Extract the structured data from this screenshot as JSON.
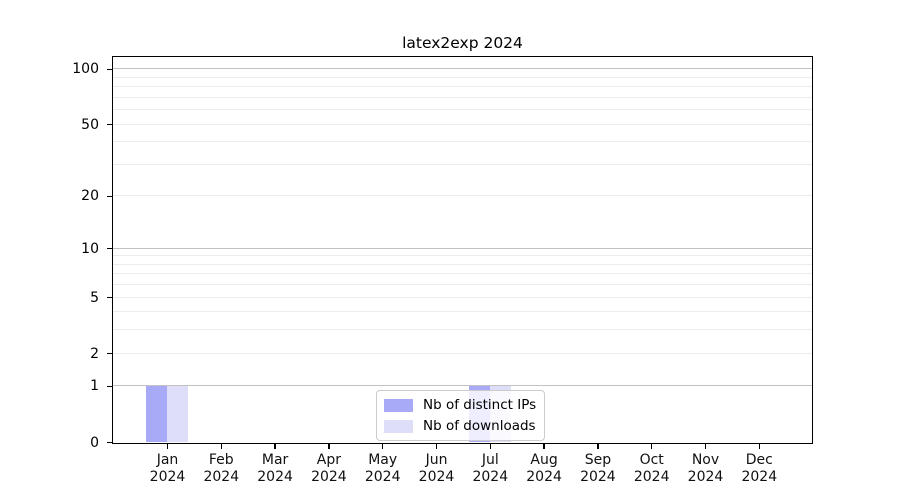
{
  "chart_data": {
    "type": "bar",
    "title": "latex2exp 2024",
    "categories": [
      "Jan",
      "Feb",
      "Mar",
      "Apr",
      "May",
      "Jun",
      "Jul",
      "Aug",
      "Sep",
      "Oct",
      "Nov",
      "Dec"
    ],
    "category_sublabel": "2024",
    "series": [
      {
        "name": "Nb of distinct IPs",
        "color": "#a9aaf7",
        "values": [
          1,
          0,
          0,
          0,
          0,
          0,
          1,
          0,
          0,
          0,
          0,
          0
        ]
      },
      {
        "name": "Nb of downloads",
        "color": "#dedef8",
        "values": [
          1,
          0,
          0,
          0,
          0,
          0,
          1,
          0,
          0,
          0,
          0,
          0
        ]
      }
    ],
    "y_axis": {
      "scale": "log1p",
      "ylim": [
        0,
        116
      ],
      "tick_labels": [
        0,
        1,
        2,
        5,
        10,
        20,
        50,
        100
      ],
      "major_gridlines": [
        1,
        10,
        100
      ],
      "minor_gridlines": [
        2,
        3,
        4,
        5,
        6,
        7,
        8,
        9,
        20,
        30,
        40,
        50,
        60,
        70,
        80,
        90
      ],
      "major_grid_color": "#c2c2c2",
      "minor_grid_color": "#ececec"
    },
    "x_axis": {
      "ticks_per_category": true
    },
    "legend": {
      "position": "inside-bottom-center",
      "background": "rgba(255,255,255,0.8)",
      "border_color": "#cccccc"
    },
    "grid": true,
    "plot_border_color": "#000000",
    "background_color": "#ffffff"
  }
}
